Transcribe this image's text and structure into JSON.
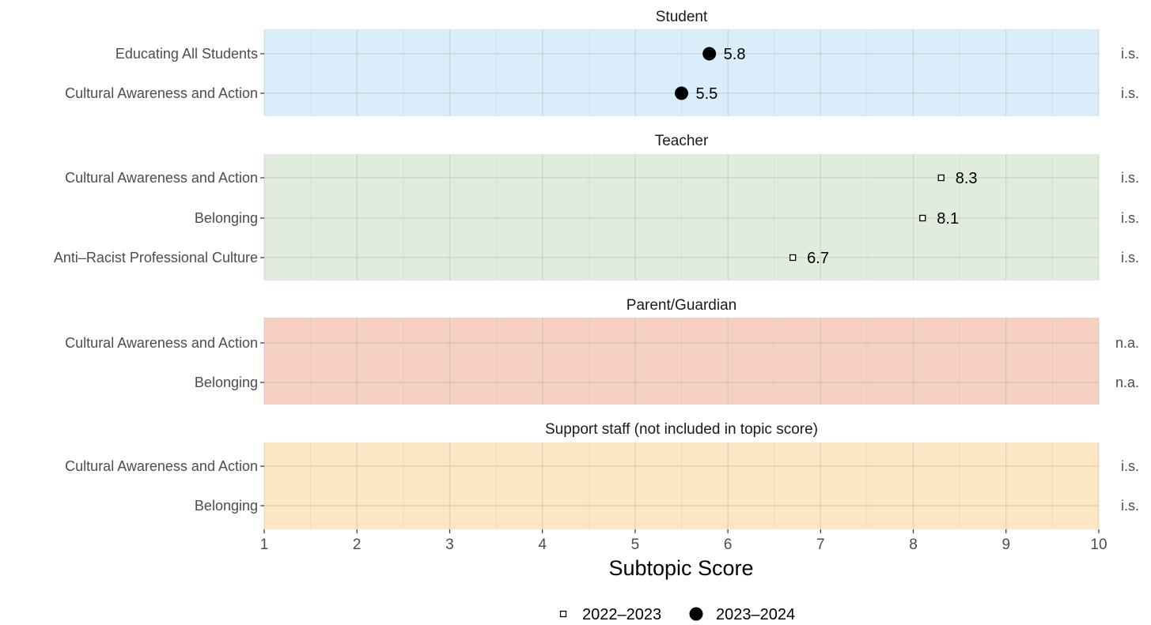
{
  "chart_data": {
    "type": "scatter",
    "xlabel": "Subtopic Score",
    "xlim": [
      1,
      10
    ],
    "xticks": [
      "1",
      "2",
      "3",
      "4",
      "5",
      "6",
      "7",
      "8",
      "9",
      "10"
    ],
    "legend": {
      "position": "bottom",
      "entries": [
        {
          "label": "2022–2023",
          "marker": "open-square"
        },
        {
          "label": "2023–2024",
          "marker": "filled-circle"
        }
      ]
    },
    "panels": [
      {
        "title": "Student",
        "color": "#d9eefa",
        "rows": [
          {
            "label": "Educating All Students",
            "value": 5.8,
            "value_label": "5.8",
            "marker": "filled-circle",
            "note": "i.s."
          },
          {
            "label": "Cultural Awareness and Action",
            "value": 5.5,
            "value_label": "5.5",
            "marker": "filled-circle",
            "note": "i.s."
          }
        ]
      },
      {
        "title": "Teacher",
        "color": "#e0eddc",
        "rows": [
          {
            "label": "Cultural Awareness and Action",
            "value": 8.3,
            "value_label": "8.3",
            "marker": "open-square",
            "note": "i.s."
          },
          {
            "label": "Belonging",
            "value": 8.1,
            "value_label": "8.1",
            "marker": "open-square",
            "note": "i.s."
          },
          {
            "label": "Anti–Racist Professional Culture",
            "value": 6.7,
            "value_label": "6.7",
            "marker": "open-square",
            "note": "i.s."
          }
        ]
      },
      {
        "title": "Parent/Guardian",
        "color": "#f6d1c1",
        "rows": [
          {
            "label": "Cultural Awareness and Action",
            "value": null,
            "value_label": "",
            "marker": "",
            "note": "n.a."
          },
          {
            "label": "Belonging",
            "value": null,
            "value_label": "",
            "marker": "",
            "note": "n.a."
          }
        ]
      },
      {
        "title": "Support staff (not included in topic score)",
        "color": "#fde6c3",
        "rows": [
          {
            "label": "Cultural Awareness and Action",
            "value": null,
            "value_label": "",
            "marker": "",
            "note": "i.s."
          },
          {
            "label": "Belonging",
            "value": null,
            "value_label": "",
            "marker": "",
            "note": "i.s."
          }
        ]
      }
    ]
  }
}
